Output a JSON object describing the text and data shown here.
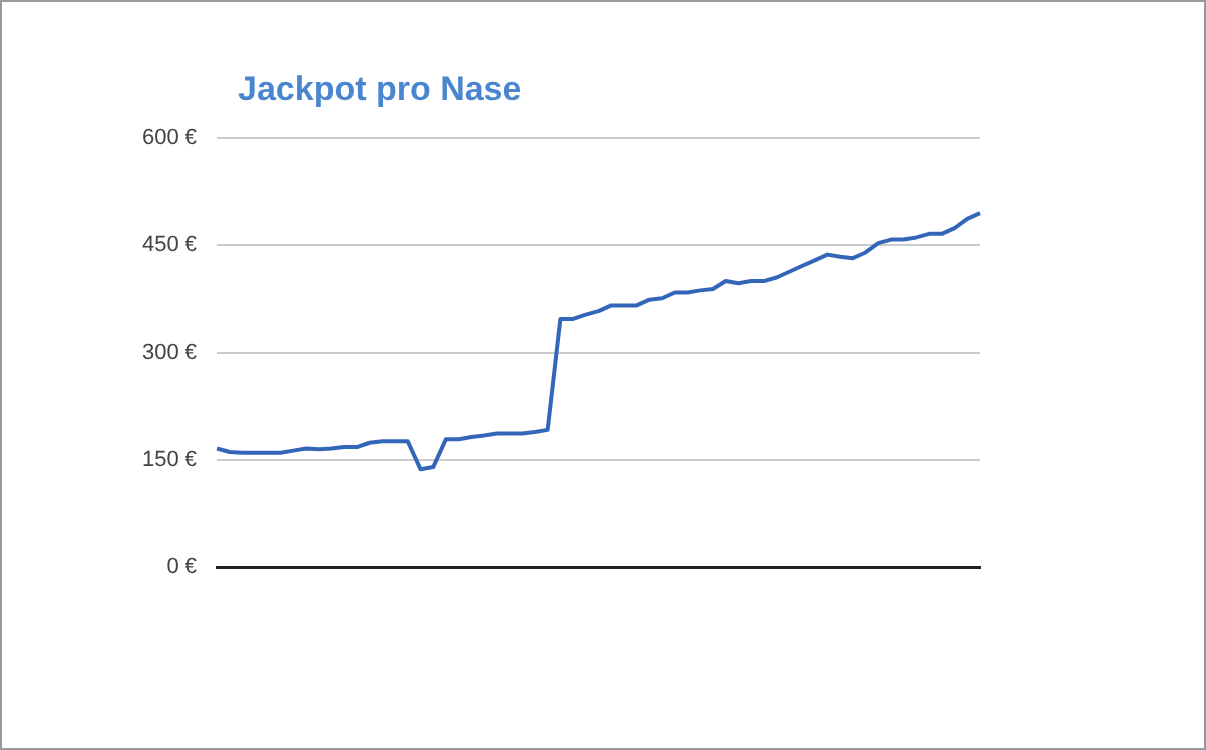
{
  "chart_data": {
    "type": "line",
    "title": "Jackpot pro Nase",
    "categories": [
      null,
      null,
      null,
      null,
      null,
      null,
      null,
      null,
      null,
      null,
      null,
      null,
      null,
      null,
      null,
      null,
      null,
      null,
      null,
      null,
      null,
      null,
      null,
      null,
      null,
      null,
      null,
      null,
      null,
      null,
      null,
      null,
      null,
      null,
      null,
      null,
      null,
      null,
      null,
      null,
      null,
      null,
      null,
      null,
      null,
      null,
      null,
      null,
      null,
      null,
      null,
      null,
      null,
      null,
      null,
      null,
      null,
      null,
      null,
      null,
      null
    ],
    "series": [
      {
        "color": "#3366b8",
        "values": [
          166,
          161,
          160,
          160,
          160,
          160,
          163,
          166,
          165,
          166,
          168,
          168,
          174,
          176,
          176,
          176,
          137,
          140,
          179,
          179,
          182,
          184,
          187,
          187,
          187,
          189,
          192,
          347,
          347,
          353,
          358,
          366,
          366,
          366,
          374,
          376,
          384,
          384,
          387,
          389,
          400,
          397,
          400,
          400,
          405,
          413,
          421,
          429,
          437,
          434,
          432,
          440,
          453,
          458,
          458,
          461,
          466,
          466,
          474,
          487,
          495
        ]
      }
    ],
    "ylim": [
      0,
      600
    ],
    "yticks": [
      {
        "value": 0,
        "label": "0 €"
      },
      {
        "value": 150,
        "label": "150 €"
      },
      {
        "value": 300,
        "label": "300 €"
      },
      {
        "value": 450,
        "label": "450 €"
      },
      {
        "value": 600,
        "label": "600 €"
      }
    ],
    "grid": "y",
    "legend": false,
    "marker": "none",
    "line_style": "solid"
  }
}
